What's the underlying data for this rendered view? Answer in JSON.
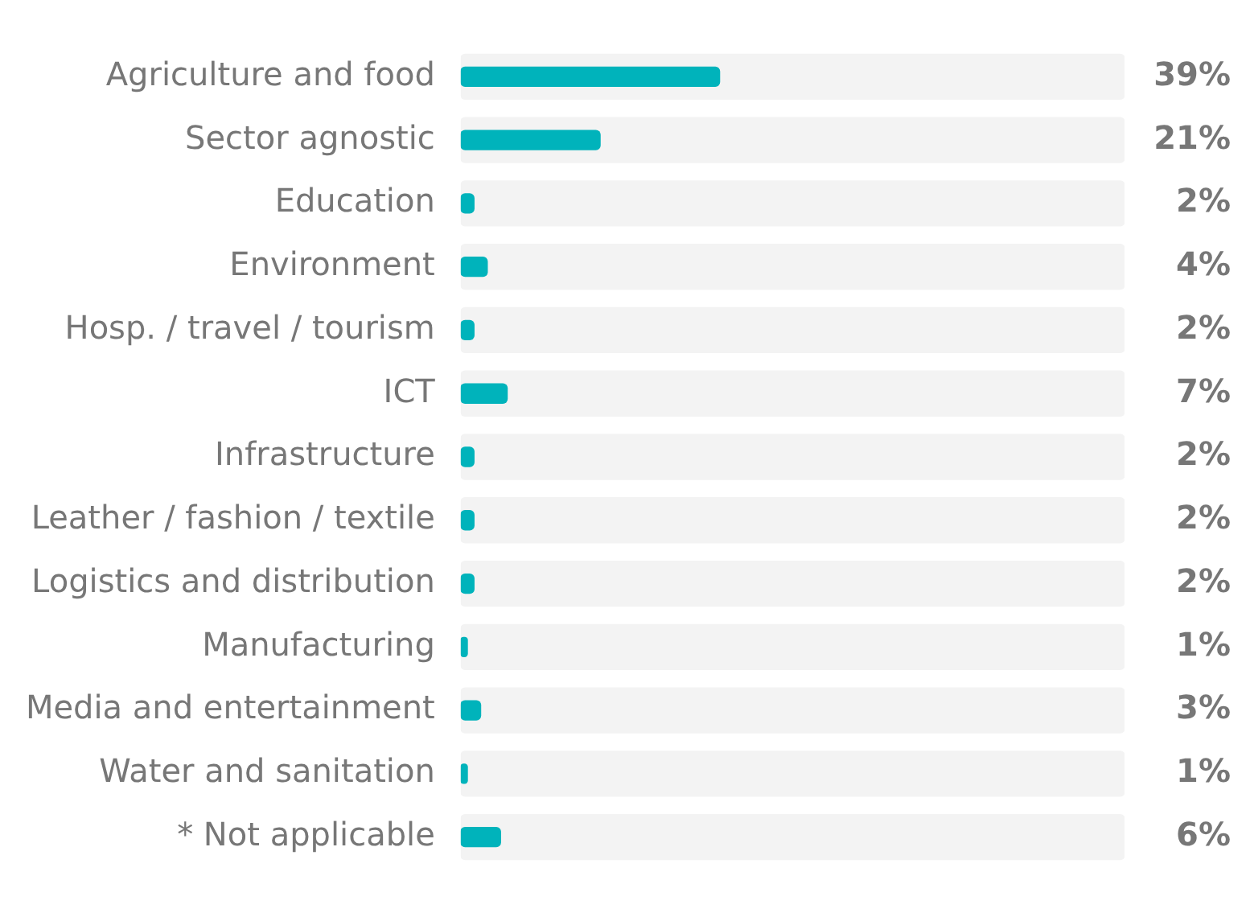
{
  "chart_data": {
    "type": "bar",
    "orientation": "horizontal",
    "categories": [
      "Agriculture and food",
      "Sector agnostic",
      "Education",
      "Environment",
      "Hosp. / travel / tourism",
      "ICT",
      "Infrastructure",
      "Leather / fashion / textile",
      "Logistics and distribution",
      "Manufacturing",
      "Media and entertainment",
      "Water and sanitation",
      "* Not applicable"
    ],
    "series": [
      {
        "color": "#f3f3f3",
        "values": [
          100,
          100,
          100,
          100,
          100,
          100,
          100,
          100,
          100,
          100,
          100,
          100,
          100
        ]
      },
      {
        "color": "#00b3bb",
        "values": [
          39,
          21,
          2,
          4,
          2,
          7,
          2,
          2,
          2,
          1,
          3,
          1,
          6
        ],
        "value_labels": [
          "39%",
          "21%",
          "2%",
          "4%",
          "2%",
          "7%",
          "2%",
          "2%",
          "2%",
          "1%",
          "3%",
          "1%",
          "6%"
        ]
      }
    ],
    "xlim": [
      0,
      100
    ],
    "tick_labels": "y",
    "legend": false
  }
}
